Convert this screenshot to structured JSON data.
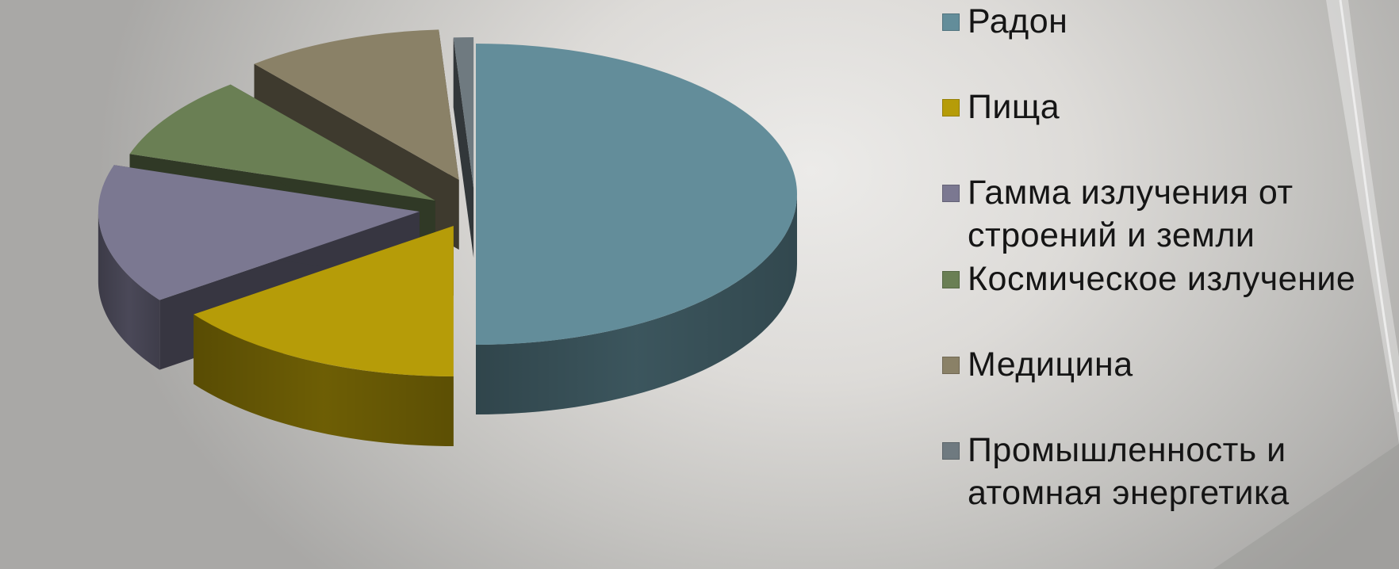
{
  "chart_data": {
    "type": "pie",
    "style": "3d-exploded",
    "legend_position": "right",
    "slices": [
      {
        "label": "Радон",
        "value": 50.0,
        "color": "#638d9a"
      },
      {
        "label": "Пища",
        "value": 15.0,
        "color": "#b69c08"
      },
      {
        "label": "Гамма излучения от\nстроений и земли",
        "value": 15.0,
        "color": "#7b7891"
      },
      {
        "label": "Космическое излучение",
        "value": 9.0,
        "color": "#6a7f54"
      },
      {
        "label": "Медицина",
        "value": 10.0,
        "color": "#8a8167"
      },
      {
        "label": "Промышленность и\nатомная энергетика",
        "value": 1.0,
        "color": "#6f7a80"
      }
    ]
  }
}
